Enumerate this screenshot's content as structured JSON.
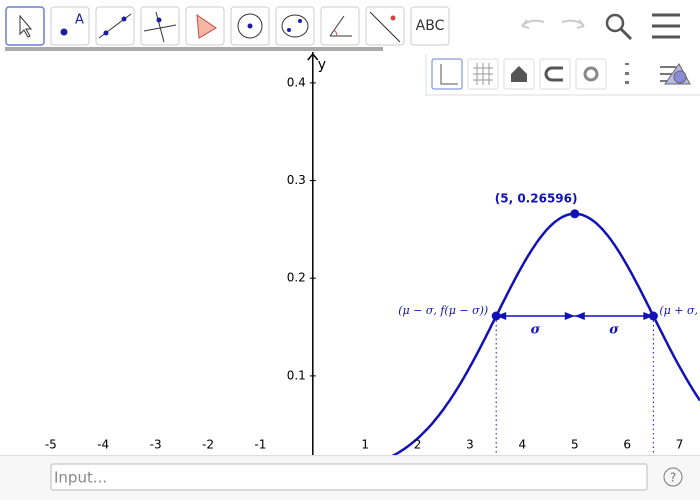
{
  "toolbar": {
    "text_tool": "ABC"
  },
  "graph": {
    "y_axis_label": "y",
    "xlim": [
      -5.97,
      7.39
    ],
    "ylim": [
      0.019,
      0.4316
    ],
    "xticks": [
      -5,
      -4,
      -3,
      -2,
      -1,
      1,
      2,
      3,
      4,
      5,
      6,
      7
    ],
    "yticks": [
      0.1,
      0.2,
      0.3,
      0.4
    ],
    "peak": {
      "x": 5,
      "y": 0.26596,
      "label": "(5, 0.26596)"
    },
    "sigma_points": {
      "x": [
        3.5,
        6.5
      ],
      "labels": [
        "(μ − σ, f(μ − σ))",
        "(μ + σ, f(μ + σ))"
      ]
    },
    "sigma_annotations": [
      "σ",
      "σ"
    ]
  },
  "input": {
    "placeholder": "Input...",
    "help": "?"
  }
}
